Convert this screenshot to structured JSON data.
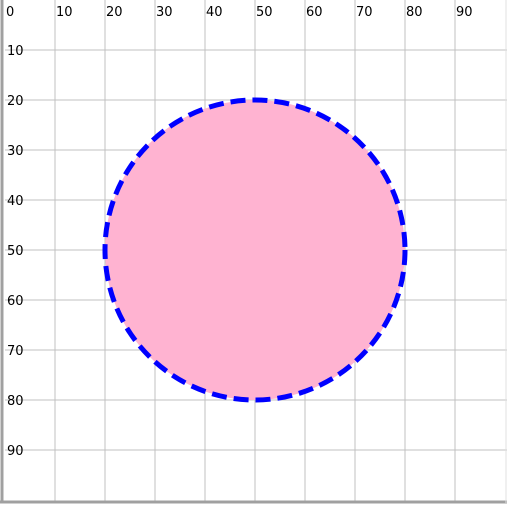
{
  "grid": {
    "x_ticks": [
      0,
      10,
      20,
      30,
      40,
      50,
      60,
      70,
      80,
      90
    ],
    "y_ticks": [
      10,
      20,
      30,
      40,
      50,
      60,
      70,
      80,
      90
    ],
    "x_range": [
      0,
      100
    ],
    "y_range": [
      0,
      100
    ],
    "line_color": "#c0c0c0",
    "border_color": "#a0a0a0"
  },
  "circle": {
    "center_x": 50,
    "center_y": 50,
    "radius": 30,
    "fill": "#ffb3d1",
    "stroke": "#0000ff",
    "stroke_style": "dashed"
  }
}
